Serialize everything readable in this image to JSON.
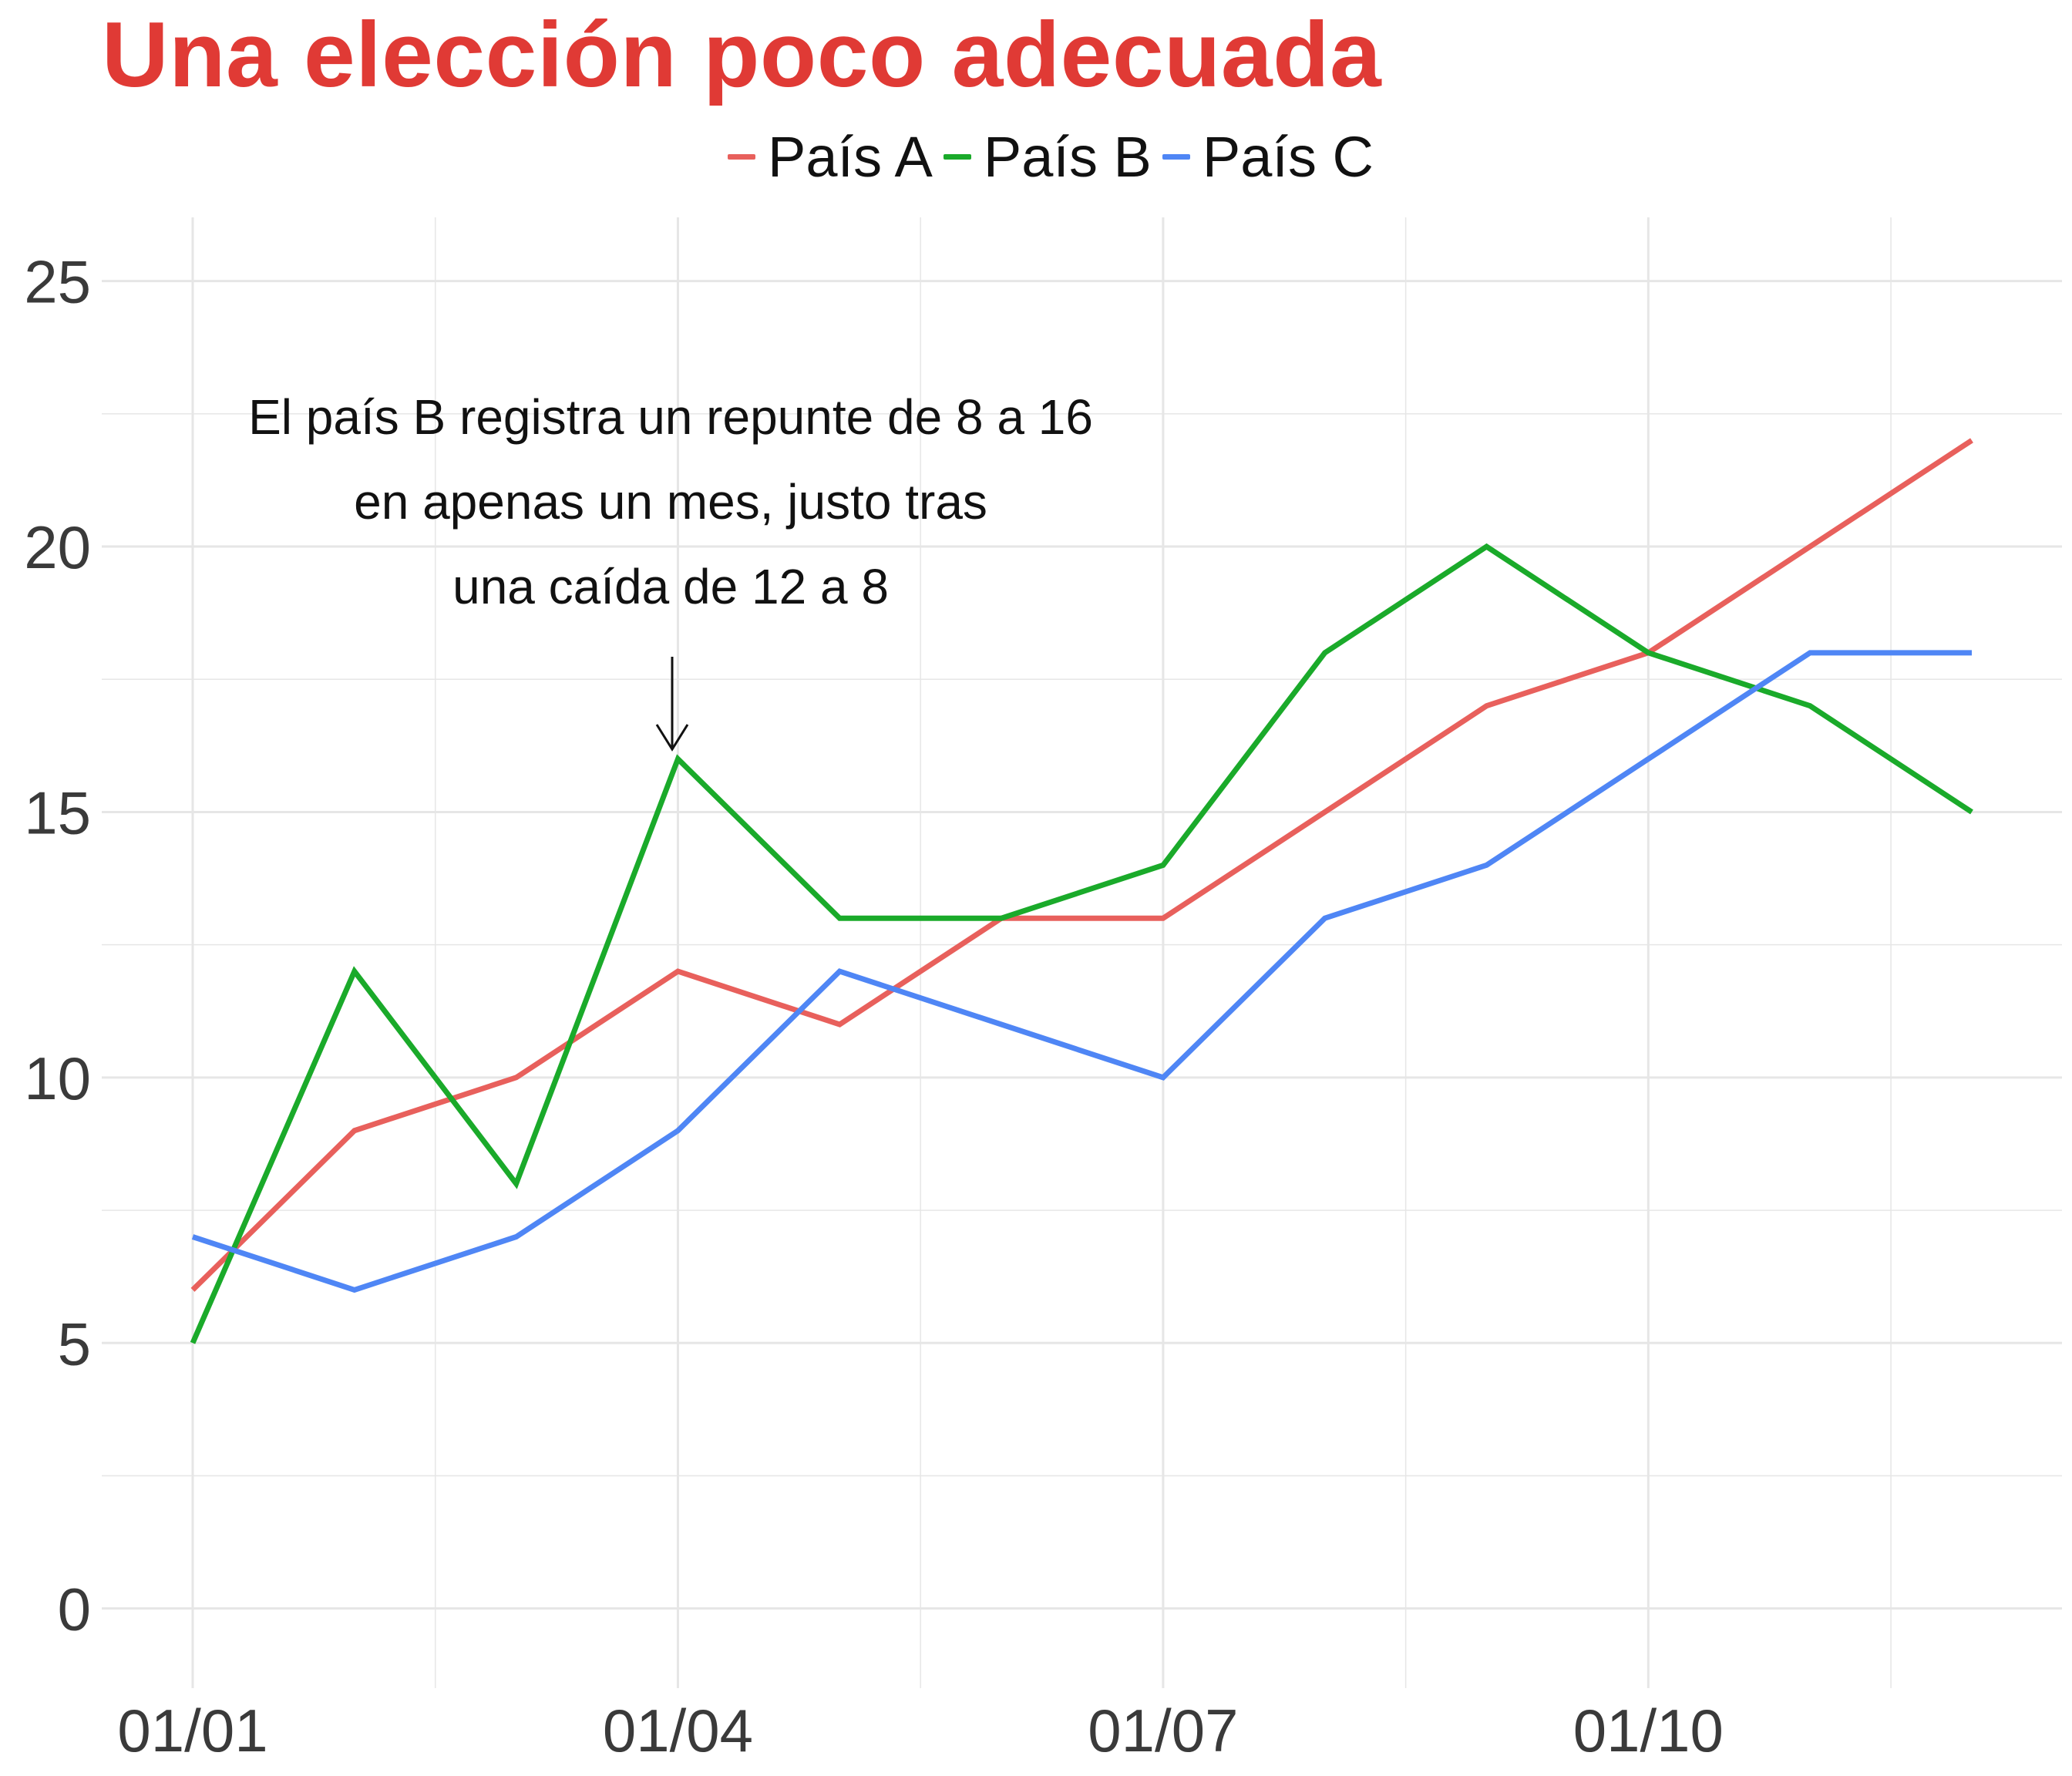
{
  "title": "Una elección poco adecuada",
  "legend": [
    {
      "label": "País A",
      "color": "#e8605c"
    },
    {
      "label": "País B",
      "color": "#1aaa2a"
    },
    {
      "label": "País C",
      "color": "#4f86f5"
    }
  ],
  "annotation": {
    "lines": [
      "El país B registra un repunte de 8 a 16",
      "en apenas un mes, justo tras",
      "una caída de 12 a 8"
    ]
  },
  "chart_data": {
    "type": "line",
    "x": [
      "01/01",
      "01/02",
      "01/03",
      "01/04",
      "01/05",
      "01/06",
      "01/07",
      "01/08",
      "01/09",
      "01/10",
      "01/11",
      "01/12"
    ],
    "x_ticks": [
      "01/01",
      "01/04",
      "01/07",
      "01/10"
    ],
    "y_ticks": [
      0,
      5,
      10,
      15,
      20,
      25
    ],
    "ylim": [
      -1.5,
      26.2
    ],
    "grid": true,
    "legend_position": "top",
    "series": [
      {
        "name": "País A",
        "color": "#e8605c",
        "values": [
          6,
          9,
          10,
          12,
          11,
          13,
          13,
          15,
          17,
          18,
          20,
          22
        ]
      },
      {
        "name": "País B",
        "color": "#1aaa2a",
        "values": [
          5,
          12,
          8,
          16,
          13,
          13,
          14,
          18,
          20,
          18,
          17,
          15
        ]
      },
      {
        "name": "País C",
        "color": "#4f86f5",
        "values": [
          7,
          6,
          7,
          9,
          12,
          11,
          10,
          13,
          14,
          16,
          18,
          18
        ]
      }
    ]
  }
}
